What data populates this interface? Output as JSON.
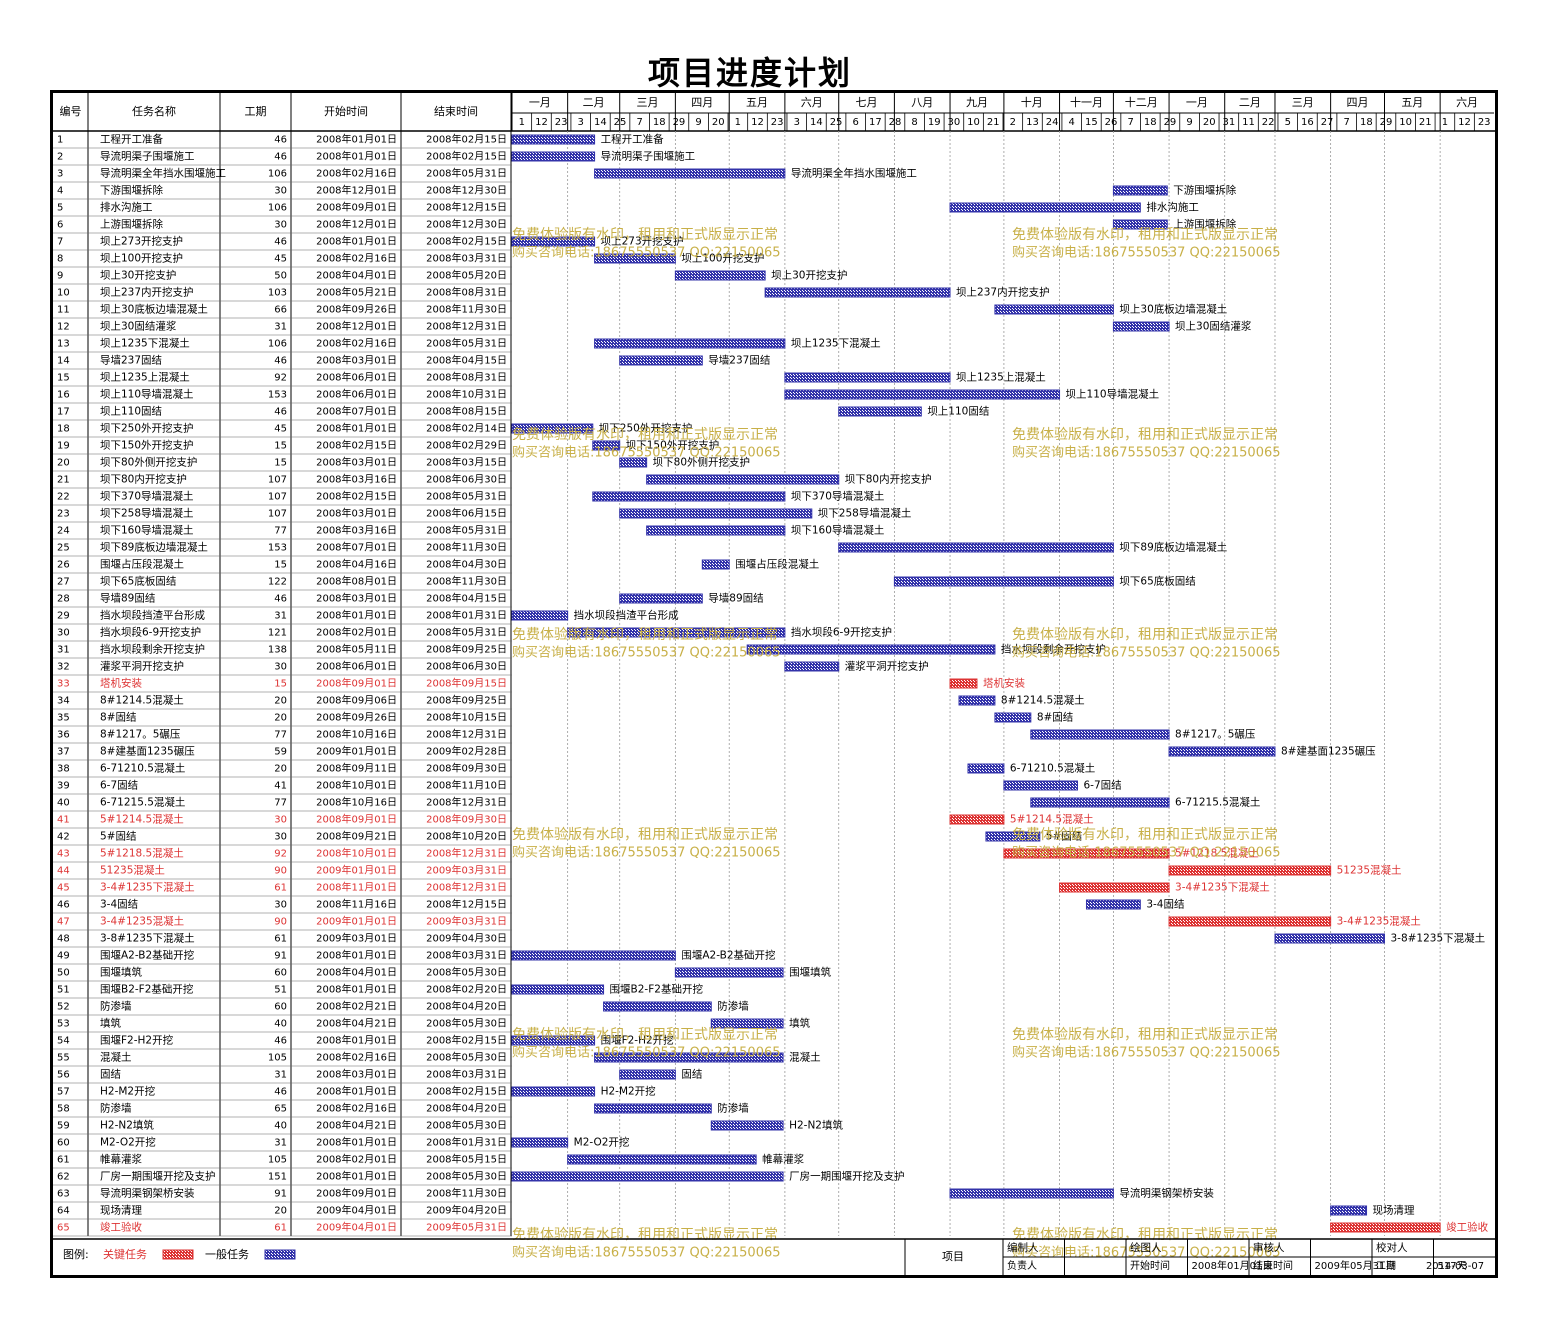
{
  "title": "项目进度计划",
  "colors": {
    "normal": "#3333aa",
    "critical": "#dd3333",
    "watermark": "#c8b048"
  },
  "headers": {
    "no": "编号",
    "name": "任务名称",
    "dur": "工期",
    "start": "开始时间",
    "end": "结束时间"
  },
  "months": [
    "一月",
    "二月",
    "三月",
    "四月",
    "五月",
    "六月",
    "七月",
    "八月",
    "九月",
    "十月",
    "十一月",
    "十二月",
    "一月",
    "二月",
    "三月",
    "四月",
    "五月",
    "六月"
  ],
  "subdays": [
    "1",
    "12",
    "23",
    "3",
    "14",
    "25",
    "7",
    "18",
    "29",
    "9",
    "20",
    "1",
    "12",
    "23",
    "3",
    "14",
    "25",
    "6",
    "17",
    "28",
    "8",
    "19",
    "30",
    "10",
    "21",
    "2",
    "13",
    "24",
    "4",
    "15",
    "26",
    "7",
    "18",
    "29",
    "9",
    "20",
    "31",
    "11",
    "22",
    "5",
    "16",
    "27",
    "7",
    "18",
    "29",
    "10",
    "21",
    "1",
    "12",
    "23"
  ],
  "watermark": [
    "免费体验版有水印，租用和正式版显示正常",
    "购买咨询电话:18675550537 QQ:22150065"
  ],
  "chart_data": {
    "type": "gantt",
    "time_axis": {
      "start": "2008-01-01",
      "end": "2009-06-30",
      "unit": "month"
    },
    "tasks": [
      {
        "no": "1",
        "name": "工程开工准备",
        "dur": 46,
        "start": "2008年01月01日",
        "end": "2008年02月15日",
        "critical": false
      },
      {
        "no": "2",
        "name": "导流明渠子围堰施工",
        "dur": 46,
        "start": "2008年01月01日",
        "end": "2008年02月15日",
        "critical": false
      },
      {
        "no": "3",
        "name": "导流明渠全年挡水围堰施工",
        "dur": 106,
        "start": "2008年02月16日",
        "end": "2008年05月31日",
        "critical": false
      },
      {
        "no": "4",
        "name": "下游围堰拆除",
        "dur": 30,
        "start": "2008年12月01日",
        "end": "2008年12月30日",
        "critical": false
      },
      {
        "no": "5",
        "name": "排水沟施工",
        "dur": 106,
        "start": "2008年09月01日",
        "end": "2008年12月15日",
        "critical": false
      },
      {
        "no": "6",
        "name": "上游围堰拆除",
        "dur": 30,
        "start": "2008年12月01日",
        "end": "2008年12月30日",
        "critical": false
      },
      {
        "no": "7",
        "name": "坝上273开挖支护",
        "dur": 46,
        "start": "2008年01月01日",
        "end": "2008年02月15日",
        "critical": false
      },
      {
        "no": "8",
        "name": "坝上100开挖支护",
        "dur": 45,
        "start": "2008年02月16日",
        "end": "2008年03月31日",
        "critical": false
      },
      {
        "no": "9",
        "name": "坝上30开挖支护",
        "dur": 50,
        "start": "2008年04月01日",
        "end": "2008年05月20日",
        "critical": false
      },
      {
        "no": "10",
        "name": "坝上237内开挖支护",
        "dur": 103,
        "start": "2008年05月21日",
        "end": "2008年08月31日",
        "critical": false
      },
      {
        "no": "11",
        "name": "坝上30底板边墙混凝土",
        "dur": 66,
        "start": "2008年09月26日",
        "end": "2008年11月30日",
        "critical": false
      },
      {
        "no": "12",
        "name": "坝上30固结灌浆",
        "dur": 31,
        "start": "2008年12月01日",
        "end": "2008年12月31日",
        "critical": false
      },
      {
        "no": "13",
        "name": "坝上1235下混凝土",
        "dur": 106,
        "start": "2008年02月16日",
        "end": "2008年05月31日",
        "critical": false
      },
      {
        "no": "14",
        "name": "导墙237固结",
        "dur": 46,
        "start": "2008年03月01日",
        "end": "2008年04月15日",
        "critical": false
      },
      {
        "no": "15",
        "name": "坝上1235上混凝土",
        "dur": 92,
        "start": "2008年06月01日",
        "end": "2008年08月31日",
        "critical": false
      },
      {
        "no": "16",
        "name": "坝上110导墙混凝土",
        "dur": 153,
        "start": "2008年06月01日",
        "end": "2008年10月31日",
        "critical": false
      },
      {
        "no": "17",
        "name": "坝上110固结",
        "dur": 46,
        "start": "2008年07月01日",
        "end": "2008年08月15日",
        "critical": false
      },
      {
        "no": "18",
        "name": "坝下250外开挖支护",
        "dur": 45,
        "start": "2008年01月01日",
        "end": "2008年02月14日",
        "critical": false
      },
      {
        "no": "19",
        "name": "坝下150外开挖支护",
        "dur": 15,
        "start": "2008年02月15日",
        "end": "2008年02月29日",
        "critical": false
      },
      {
        "no": "20",
        "name": "坝下80外侧开挖支护",
        "dur": 15,
        "start": "2008年03月01日",
        "end": "2008年03月15日",
        "critical": false
      },
      {
        "no": "21",
        "name": "坝下80内开挖支护",
        "dur": 107,
        "start": "2008年03月16日",
        "end": "2008年06月30日",
        "critical": false
      },
      {
        "no": "22",
        "name": "坝下370导墙混凝土",
        "dur": 107,
        "start": "2008年02月15日",
        "end": "2008年05月31日",
        "critical": false
      },
      {
        "no": "23",
        "name": "坝下258导墙混凝土",
        "dur": 107,
        "start": "2008年03月01日",
        "end": "2008年06月15日",
        "critical": false
      },
      {
        "no": "24",
        "name": "坝下160导墙混凝土",
        "dur": 77,
        "start": "2008年03月16日",
        "end": "2008年05月31日",
        "critical": false
      },
      {
        "no": "25",
        "name": "坝下89底板边墙混凝土",
        "dur": 153,
        "start": "2008年07月01日",
        "end": "2008年11月30日",
        "critical": false
      },
      {
        "no": "26",
        "name": "围堰占压段混凝土",
        "dur": 15,
        "start": "2008年04月16日",
        "end": "2008年04月30日",
        "critical": false
      },
      {
        "no": "27",
        "name": "坝下65底板固结",
        "dur": 122,
        "start": "2008年08月01日",
        "end": "2008年11月30日",
        "critical": false
      },
      {
        "no": "28",
        "name": "导墙89固结",
        "dur": 46,
        "start": "2008年03月01日",
        "end": "2008年04月15日",
        "critical": false
      },
      {
        "no": "29",
        "name": "挡水坝段挡渣平台形成",
        "dur": 31,
        "start": "2008年01月01日",
        "end": "2008年01月31日",
        "critical": false
      },
      {
        "no": "30",
        "name": "挡水坝段6-9开挖支护",
        "dur": 121,
        "start": "2008年02月01日",
        "end": "2008年05月31日",
        "critical": false
      },
      {
        "no": "31",
        "name": "挡水坝段剩余开挖支护",
        "dur": 138,
        "start": "2008年05月11日",
        "end": "2008年09月25日",
        "critical": false
      },
      {
        "no": "32",
        "name": "灌浆平洞开挖支护",
        "dur": 30,
        "start": "2008年06月01日",
        "end": "2008年06月30日",
        "critical": false
      },
      {
        "no": "33",
        "name": "塔机安装",
        "dur": 15,
        "start": "2008年09月01日",
        "end": "2008年09月15日",
        "critical": true
      },
      {
        "no": "34",
        "name": "8#1214.5混凝土",
        "dur": 20,
        "start": "2008年09月06日",
        "end": "2008年09月25日",
        "critical": false
      },
      {
        "no": "35",
        "name": "8#固结",
        "dur": 20,
        "start": "2008年09月26日",
        "end": "2008年10月15日",
        "critical": false
      },
      {
        "no": "36",
        "name": "8#1217。5碾压",
        "dur": 77,
        "start": "2008年10月16日",
        "end": "2008年12月31日",
        "critical": false
      },
      {
        "no": "37",
        "name": "8#建基面1235碾压",
        "dur": 59,
        "start": "2009年01月01日",
        "end": "2009年02月28日",
        "critical": false
      },
      {
        "no": "38",
        "name": "6-71210.5混凝土",
        "dur": 20,
        "start": "2008年09月11日",
        "end": "2008年09月30日",
        "critical": false
      },
      {
        "no": "39",
        "name": "6-7固结",
        "dur": 41,
        "start": "2008年10月01日",
        "end": "2008年11月10日",
        "critical": false
      },
      {
        "no": "40",
        "name": "6-71215.5混凝土",
        "dur": 77,
        "start": "2008年10月16日",
        "end": "2008年12月31日",
        "critical": false
      },
      {
        "no": "41",
        "name": "5#1214.5混凝土",
        "dur": 30,
        "start": "2008年09月01日",
        "end": "2008年09月30日",
        "critical": true
      },
      {
        "no": "42",
        "name": "5#固结",
        "dur": 30,
        "start": "2008年09月21日",
        "end": "2008年10月20日",
        "critical": false
      },
      {
        "no": "43",
        "name": "5#1218.5混凝土",
        "dur": 92,
        "start": "2008年10月01日",
        "end": "2008年12月31日",
        "critical": true
      },
      {
        "no": "44",
        "name": "51235混凝土",
        "dur": 90,
        "start": "2009年01月01日",
        "end": "2009年03月31日",
        "critical": true
      },
      {
        "no": "45",
        "name": "3-4#1235下混凝土",
        "dur": 61,
        "start": "2008年11月01日",
        "end": "2008年12月31日",
        "critical": true
      },
      {
        "no": "46",
        "name": "3-4固结",
        "dur": 30,
        "start": "2008年11月16日",
        "end": "2008年12月15日",
        "critical": false
      },
      {
        "no": "47",
        "name": "3-4#1235混凝土",
        "dur": 90,
        "start": "2009年01月01日",
        "end": "2009年03月31日",
        "critical": true
      },
      {
        "no": "48",
        "name": "3-8#1235下混凝土",
        "dur": 61,
        "start": "2009年03月01日",
        "end": "2009年04月30日",
        "critical": false
      },
      {
        "no": "49",
        "name": "围堰A2-B2基础开挖",
        "dur": 91,
        "start": "2008年01月01日",
        "end": "2008年03月31日",
        "critical": false
      },
      {
        "no": "50",
        "name": "围堰填筑",
        "dur": 60,
        "start": "2008年04月01日",
        "end": "2008年05月30日",
        "critical": false
      },
      {
        "no": "51",
        "name": "围堰B2-F2基础开挖",
        "dur": 51,
        "start": "2008年01月01日",
        "end": "2008年02月20日",
        "critical": false
      },
      {
        "no": "52",
        "name": "防渗墙",
        "dur": 60,
        "start": "2008年02月21日",
        "end": "2008年04月20日",
        "critical": false
      },
      {
        "no": "53",
        "name": "填筑",
        "dur": 40,
        "start": "2008年04月21日",
        "end": "2008年05月30日",
        "critical": false
      },
      {
        "no": "54",
        "name": "围堰F2-H2开挖",
        "dur": 46,
        "start": "2008年01月01日",
        "end": "2008年02月15日",
        "critical": false
      },
      {
        "no": "55",
        "name": "混凝土",
        "dur": 105,
        "start": "2008年02月16日",
        "end": "2008年05月30日",
        "critical": false
      },
      {
        "no": "56",
        "name": "固结",
        "dur": 31,
        "start": "2008年03月01日",
        "end": "2008年03月31日",
        "critical": false
      },
      {
        "no": "57",
        "name": "H2-M2开挖",
        "dur": 46,
        "start": "2008年01月01日",
        "end": "2008年02月15日",
        "critical": false
      },
      {
        "no": "58",
        "name": "防渗墙",
        "dur": 65,
        "start": "2008年02月16日",
        "end": "2008年04月20日",
        "critical": false
      },
      {
        "no": "59",
        "name": "H2-N2填筑",
        "dur": 40,
        "start": "2008年04月21日",
        "end": "2008年05月30日",
        "critical": false
      },
      {
        "no": "60",
        "name": "M2-O2开挖",
        "dur": 31,
        "start": "2008年01月01日",
        "end": "2008年01月31日",
        "critical": false
      },
      {
        "no": "61",
        "name": "帷幕灌浆",
        "dur": 105,
        "start": "2008年02月01日",
        "end": "2008年05月15日",
        "critical": false
      },
      {
        "no": "62",
        "name": "厂房一期围堰开挖及支护",
        "dur": 151,
        "start": "2008年01月01日",
        "end": "2008年05月30日",
        "critical": false
      },
      {
        "no": "63",
        "name": "导流明渠钢架桥安装",
        "dur": 91,
        "start": "2008年09月01日",
        "end": "2008年11月30日",
        "critical": false
      },
      {
        "no": "64",
        "name": "现场清理",
        "dur": 20,
        "start": "2009年04月01日",
        "end": "2009年04月20日",
        "critical": false
      },
      {
        "no": "65",
        "name": "竣工验收",
        "dur": 61,
        "start": "2009年04月01日",
        "end": "2009年05月31日",
        "critical": true
      }
    ]
  },
  "legend": {
    "label": "图例:",
    "critical": "关键任务",
    "normal": "一般任务"
  },
  "footer": {
    "project": "项目",
    "editor": "编制人",
    "drawer": "绘图人",
    "reviewer": "审核人",
    "proofreader": "校对人",
    "owner": "负责人",
    "start_label": "开始时间",
    "start_value": "2008年01月01日",
    "end_label": "结束时间",
    "end_value": "2009年05月31日",
    "dur_label": "工期",
    "dur_value": "517天",
    "date": "2014-03-07"
  }
}
